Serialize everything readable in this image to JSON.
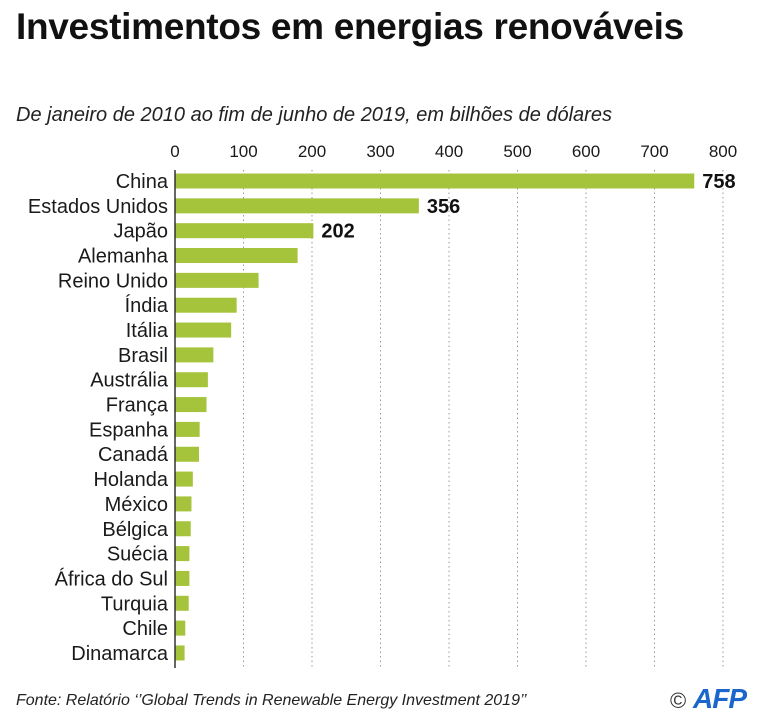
{
  "title": "Investimentos em energias renováveis",
  "subtitle": "De janeiro de 2010 ao fim de junho de  2019, em bilhões de dólares",
  "source": "Fonte: Relatório  ‘’Global Trends in Renewable Energy Investment 2019’’",
  "copyright_symbol": "©",
  "agency": "AFP",
  "colors": {
    "bar": "#a5c33b",
    "grid": "#9a9a9a",
    "text": "#1a1a1a",
    "brand": "#1a66cc"
  },
  "chart_data": {
    "type": "bar",
    "orientation": "horizontal",
    "categories": [
      "China",
      "Estados Unidos",
      "Japão",
      "Alemanha",
      "Reino Unido",
      "Índia",
      "Itália",
      "Brasil",
      "Austrália",
      "França",
      "Espanha",
      "Canadá",
      "Holanda",
      "México",
      "Bélgica",
      "Suécia",
      "África do Sul",
      "Turquia",
      "Chile",
      "Dinamarca"
    ],
    "values": [
      758,
      356,
      202,
      179,
      122,
      90,
      82,
      56,
      48,
      46,
      36,
      35,
      26,
      24,
      23,
      21,
      21,
      20,
      15,
      14
    ],
    "data_labels": [
      "758",
      "356",
      "202",
      null,
      null,
      null,
      null,
      null,
      null,
      null,
      null,
      null,
      null,
      null,
      null,
      null,
      null,
      null,
      null,
      null
    ],
    "ticks": [
      "0",
      "100",
      "200",
      "300",
      "400",
      "500",
      "600",
      "700",
      "800"
    ],
    "xlim": [
      0,
      800
    ],
    "axis_position": "top",
    "grid": true,
    "unit": "bilhões de dólares"
  }
}
